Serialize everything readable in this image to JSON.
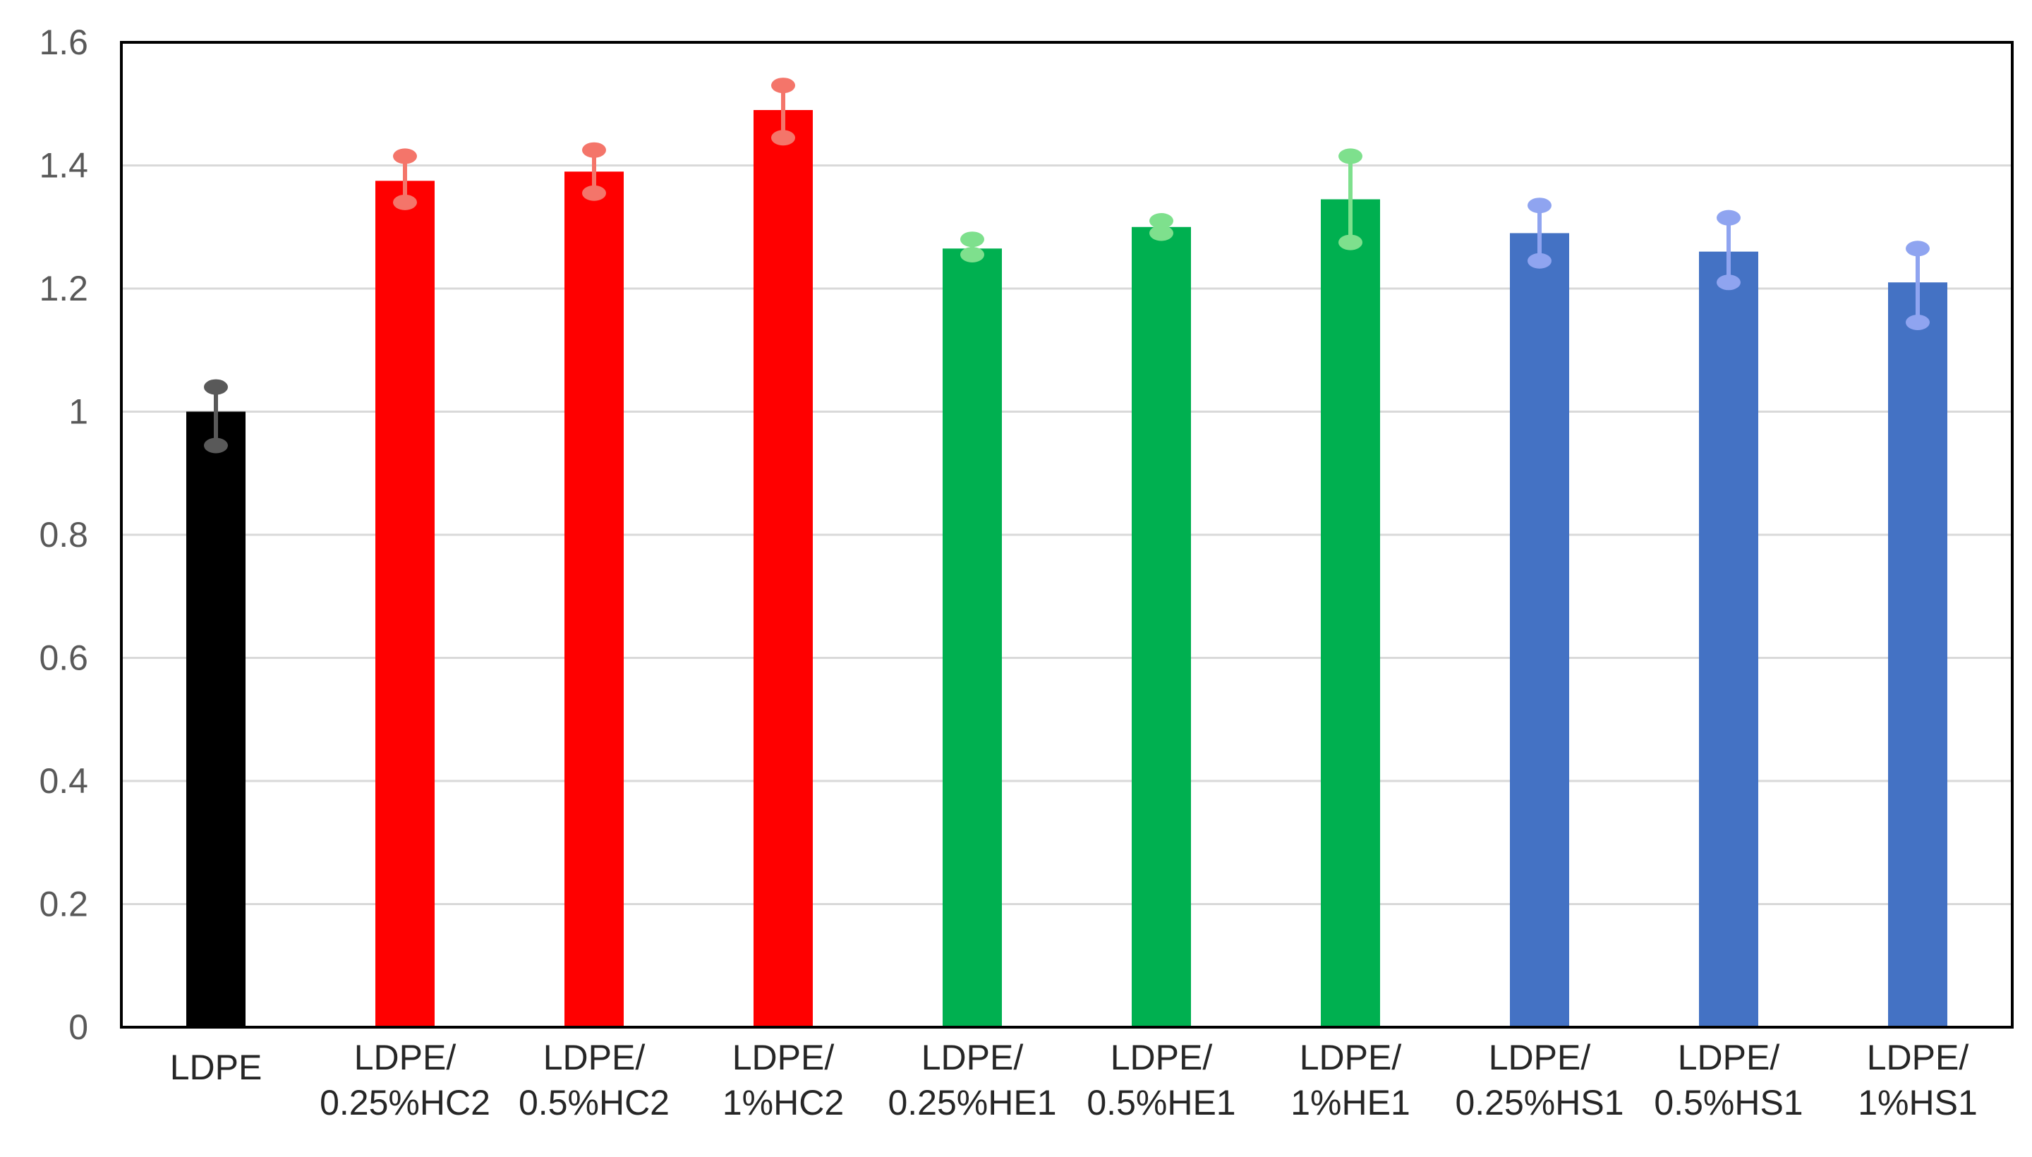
{
  "chart_data": {
    "type": "bar",
    "title": "",
    "xlabel": "",
    "ylabel": "",
    "ylim": [
      0,
      1.6
    ],
    "yticks": [
      0,
      0.2,
      0.4,
      0.6,
      0.8,
      1,
      1.2,
      1.4,
      1.6
    ],
    "ytick_labels": [
      "0",
      "0.2",
      "0.4",
      "0.6",
      "0.8",
      "1",
      "1.2",
      "1.4",
      "1.6"
    ],
    "grid": true,
    "legend": "none",
    "bars": [
      {
        "label_lines": [
          "LDPE"
        ],
        "value": 1.0,
        "err_low": 0.055,
        "err_high": 0.04,
        "color": "#000000",
        "err_color": "#595959"
      },
      {
        "label_lines": [
          "LDPE/",
          "0.25%HC2"
        ],
        "value": 1.375,
        "err_low": 0.035,
        "err_high": 0.04,
        "color": "#ff0000",
        "err_color": "#f4756a"
      },
      {
        "label_lines": [
          "LDPE/",
          "0.5%HC2"
        ],
        "value": 1.39,
        "err_low": 0.035,
        "err_high": 0.035,
        "color": "#ff0000",
        "err_color": "#f4756a"
      },
      {
        "label_lines": [
          "LDPE/",
          "1%HC2"
        ],
        "value": 1.49,
        "err_low": 0.045,
        "err_high": 0.04,
        "color": "#ff0000",
        "err_color": "#f4756a"
      },
      {
        "label_lines": [
          "LDPE/",
          "0.25%HE1"
        ],
        "value": 1.265,
        "err_low": 0.01,
        "err_high": 0.015,
        "color": "#00b050",
        "err_color": "#7ee08d"
      },
      {
        "label_lines": [
          "LDPE/",
          "0.5%HE1"
        ],
        "value": 1.3,
        "err_low": 0.01,
        "err_high": 0.01,
        "color": "#00b050",
        "err_color": "#7ee08d"
      },
      {
        "label_lines": [
          "LDPE/",
          "1%HE1"
        ],
        "value": 1.345,
        "err_low": 0.07,
        "err_high": 0.07,
        "color": "#00b050",
        "err_color": "#7ee08d"
      },
      {
        "label_lines": [
          "LDPE/",
          "0.25%HS1"
        ],
        "value": 1.29,
        "err_low": 0.045,
        "err_high": 0.045,
        "color": "#4472c4",
        "err_color": "#8fa4f0"
      },
      {
        "label_lines": [
          "LDPE/",
          "0.5%HS1"
        ],
        "value": 1.26,
        "err_low": 0.05,
        "err_high": 0.055,
        "color": "#4472c4",
        "err_color": "#8fa4f0"
      },
      {
        "label_lines": [
          "LDPE/",
          "1%HS1"
        ],
        "value": 1.21,
        "err_low": 0.065,
        "err_high": 0.055,
        "color": "#4472c4",
        "err_color": "#8fa4f0"
      }
    ],
    "colors": {
      "grid": "#d9d9d9",
      "frame": "#000000",
      "tick_text": "#595959",
      "label_text": "#262626"
    }
  }
}
